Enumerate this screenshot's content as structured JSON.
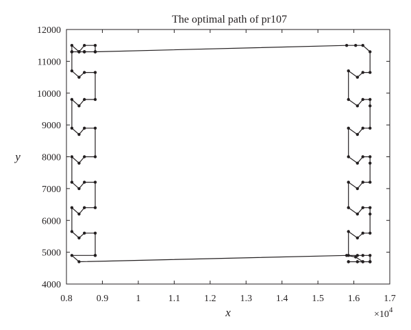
{
  "chart_data": {
    "type": "line",
    "title": "The optimal path of pr107",
    "xlabel": "x",
    "ylabel": "y",
    "x_scale_label": "×10",
    "x_scale_exponent": "4",
    "xlim": [
      8000,
      17000
    ],
    "ylim": [
      4000,
      12000
    ],
    "x_tick_labels": [
      "0.8",
      "0.9",
      "1",
      "1.1",
      "1.2",
      "1.3",
      "1.4",
      "1.5",
      "1.6",
      "1.7"
    ],
    "x_tick_values": [
      8000,
      9000,
      10000,
      11000,
      12000,
      13000,
      14000,
      15000,
      16000,
      17000
    ],
    "y_tick_labels": [
      "4000",
      "5000",
      "6000",
      "7000",
      "8000",
      "9000",
      "10000",
      "11000",
      "12000"
    ],
    "y_tick_values": [
      4000,
      5000,
      6000,
      7000,
      8000,
      9000,
      10000,
      11000,
      12000
    ],
    "grid": false,
    "line_color": "#231f20",
    "series": [
      {
        "marker": "dot",
        "x": [
          8800,
          8800,
          8500,
          8350,
          8150,
          8150,
          8350,
          8500,
          8800,
          8800,
          8500,
          8350,
          8150,
          8150,
          8350,
          8500,
          8800,
          8800,
          8500,
          8350,
          8150,
          8150,
          8350,
          8500,
          8800,
          8800,
          8500,
          8350,
          8150,
          8150,
          8350,
          8500,
          8800,
          8800,
          8500,
          8350,
          8150,
          8150,
          8350,
          8500,
          8800,
          8800,
          8500,
          8350,
          8150,
          8150,
          8350,
          8500,
          8800,
          8800,
          8500,
          8350,
          8150,
          8150,
          8350,
          8500,
          8800,
          15800,
          16050,
          16250,
          16450,
          16450,
          16250,
          16100,
          15850,
          15850,
          16100,
          16250,
          16450,
          16450,
          16450,
          16250,
          16100,
          15850,
          15850,
          16100,
          16250,
          16450,
          16450,
          16450,
          16250,
          16100,
          15850,
          15850,
          16100,
          16250,
          16450,
          16450,
          16450,
          16250,
          16100,
          15850,
          15850,
          16100,
          16250,
          16450,
          16450,
          16450,
          16250,
          16100,
          15850,
          15850,
          16100,
          16250,
          16450,
          16450,
          16450,
          16250,
          16050,
          15800,
          8350,
          8150,
          8800
        ],
        "y": [
          4900,
          5600,
          5600,
          5450,
          5650,
          6400,
          6200,
          6400,
          6400,
          7200,
          7200,
          7000,
          7200,
          8000,
          7800,
          8000,
          8000,
          8900,
          8900,
          8700,
          8900,
          9800,
          9600,
          9800,
          9800,
          10650,
          10650,
          10500,
          10700,
          11500,
          11300,
          11500,
          11500,
          11300,
          11300,
          11300,
          11300,
          11300,
          11300,
          11300,
          11300,
          11300,
          11300,
          11300,
          11300,
          11300,
          11300,
          11300,
          11300,
          11300,
          11300,
          11300,
          11300,
          11300,
          11300,
          11300,
          11300,
          11500,
          11500,
          11500,
          11300,
          10650,
          10650,
          10500,
          10700,
          9800,
          9600,
          9800,
          9800,
          9600,
          8900,
          8900,
          8700,
          8900,
          8000,
          7800,
          8000,
          8000,
          7800,
          7200,
          7200,
          7000,
          7200,
          6400,
          6200,
          6400,
          6400,
          6200,
          5600,
          5600,
          5450,
          5650,
          4900,
          4900,
          4900,
          4900,
          4700,
          4700,
          4700,
          4700,
          4700,
          4700,
          4700,
          4700,
          4700,
          4700,
          4700,
          4700,
          4850,
          4900,
          4700,
          4900,
          4900
        ]
      }
    ]
  }
}
